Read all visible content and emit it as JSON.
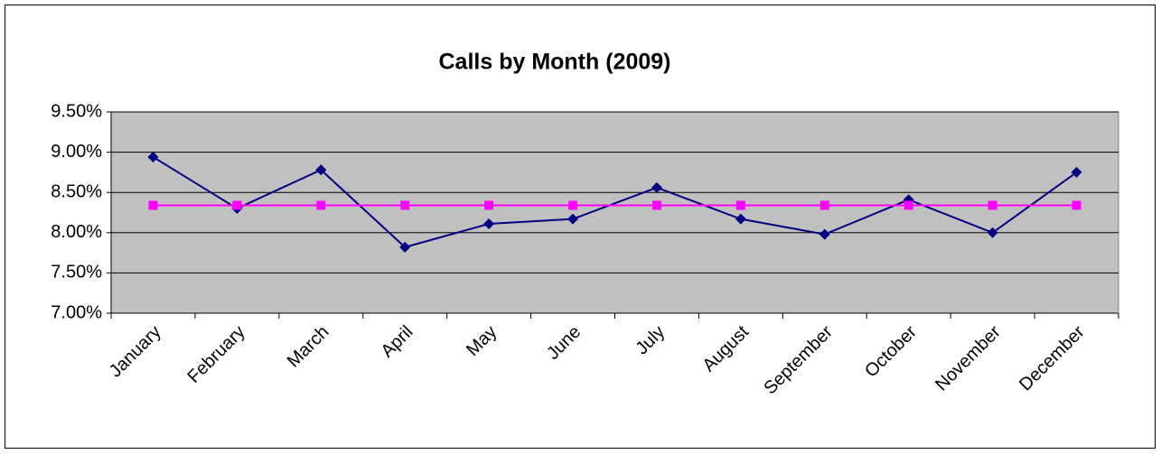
{
  "chart_data": {
    "type": "line",
    "title": "Calls by Month (2009)",
    "categories": [
      "January",
      "February",
      "March",
      "April",
      "May",
      "June",
      "July",
      "August",
      "September",
      "October",
      "November",
      "December"
    ],
    "series": [
      {
        "color": "#000080",
        "marker": "diamond",
        "values": [
          8.94,
          8.3,
          8.78,
          7.82,
          8.11,
          8.17,
          8.56,
          8.17,
          7.98,
          8.41,
          8.0,
          8.75
        ]
      },
      {
        "color": "#ff00ff",
        "marker": "square",
        "values": [
          8.34,
          8.34,
          8.34,
          8.34,
          8.34,
          8.34,
          8.34,
          8.34,
          8.34,
          8.34,
          8.34,
          8.34
        ]
      }
    ],
    "ylim": [
      7,
      9.5
    ],
    "yticks": [
      {
        "value": 7,
        "label": "7.00%"
      },
      {
        "value": 7.5,
        "label": "7.50%"
      },
      {
        "value": 8,
        "label": "8.00%"
      },
      {
        "value": 8.5,
        "label": "8.50%"
      },
      {
        "value": 9,
        "label": "9.00%"
      },
      {
        "value": 9.5,
        "label": "9.50%"
      }
    ],
    "grid": true
  }
}
